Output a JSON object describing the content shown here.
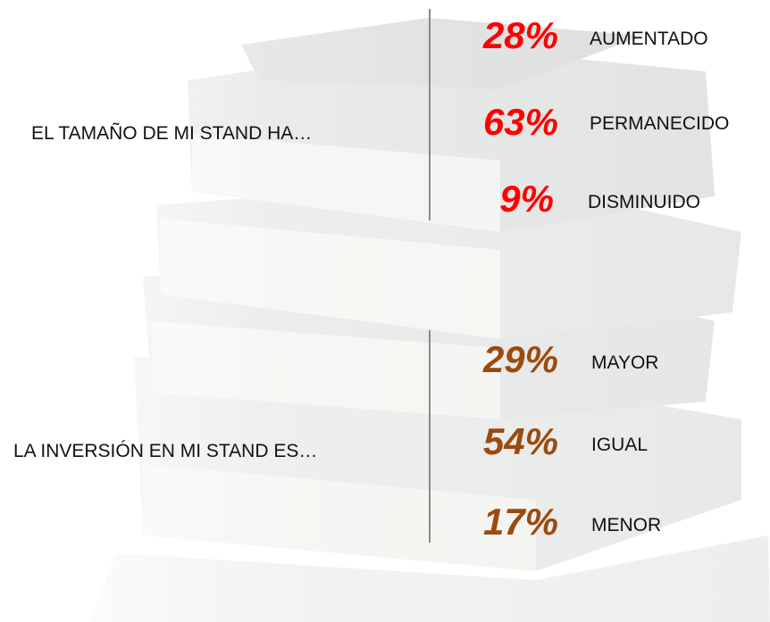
{
  "sections": [
    {
      "question": "EL TAMAÑO DE MI STAND HA…",
      "items": [
        {
          "percent": "28%",
          "label": "AUMENTADO"
        },
        {
          "percent": "63%",
          "label": "PERMANECIDO"
        },
        {
          "percent": "9%",
          "label": "DISMINUIDO"
        }
      ]
    },
    {
      "question": "LA INVERSIÓN EN MI STAND ES…",
      "items": [
        {
          "percent": "29%",
          "label": "MAYOR"
        },
        {
          "percent": "54%",
          "label": "IGUAL"
        },
        {
          "percent": "17%",
          "label": "MENOR"
        }
      ]
    }
  ]
}
